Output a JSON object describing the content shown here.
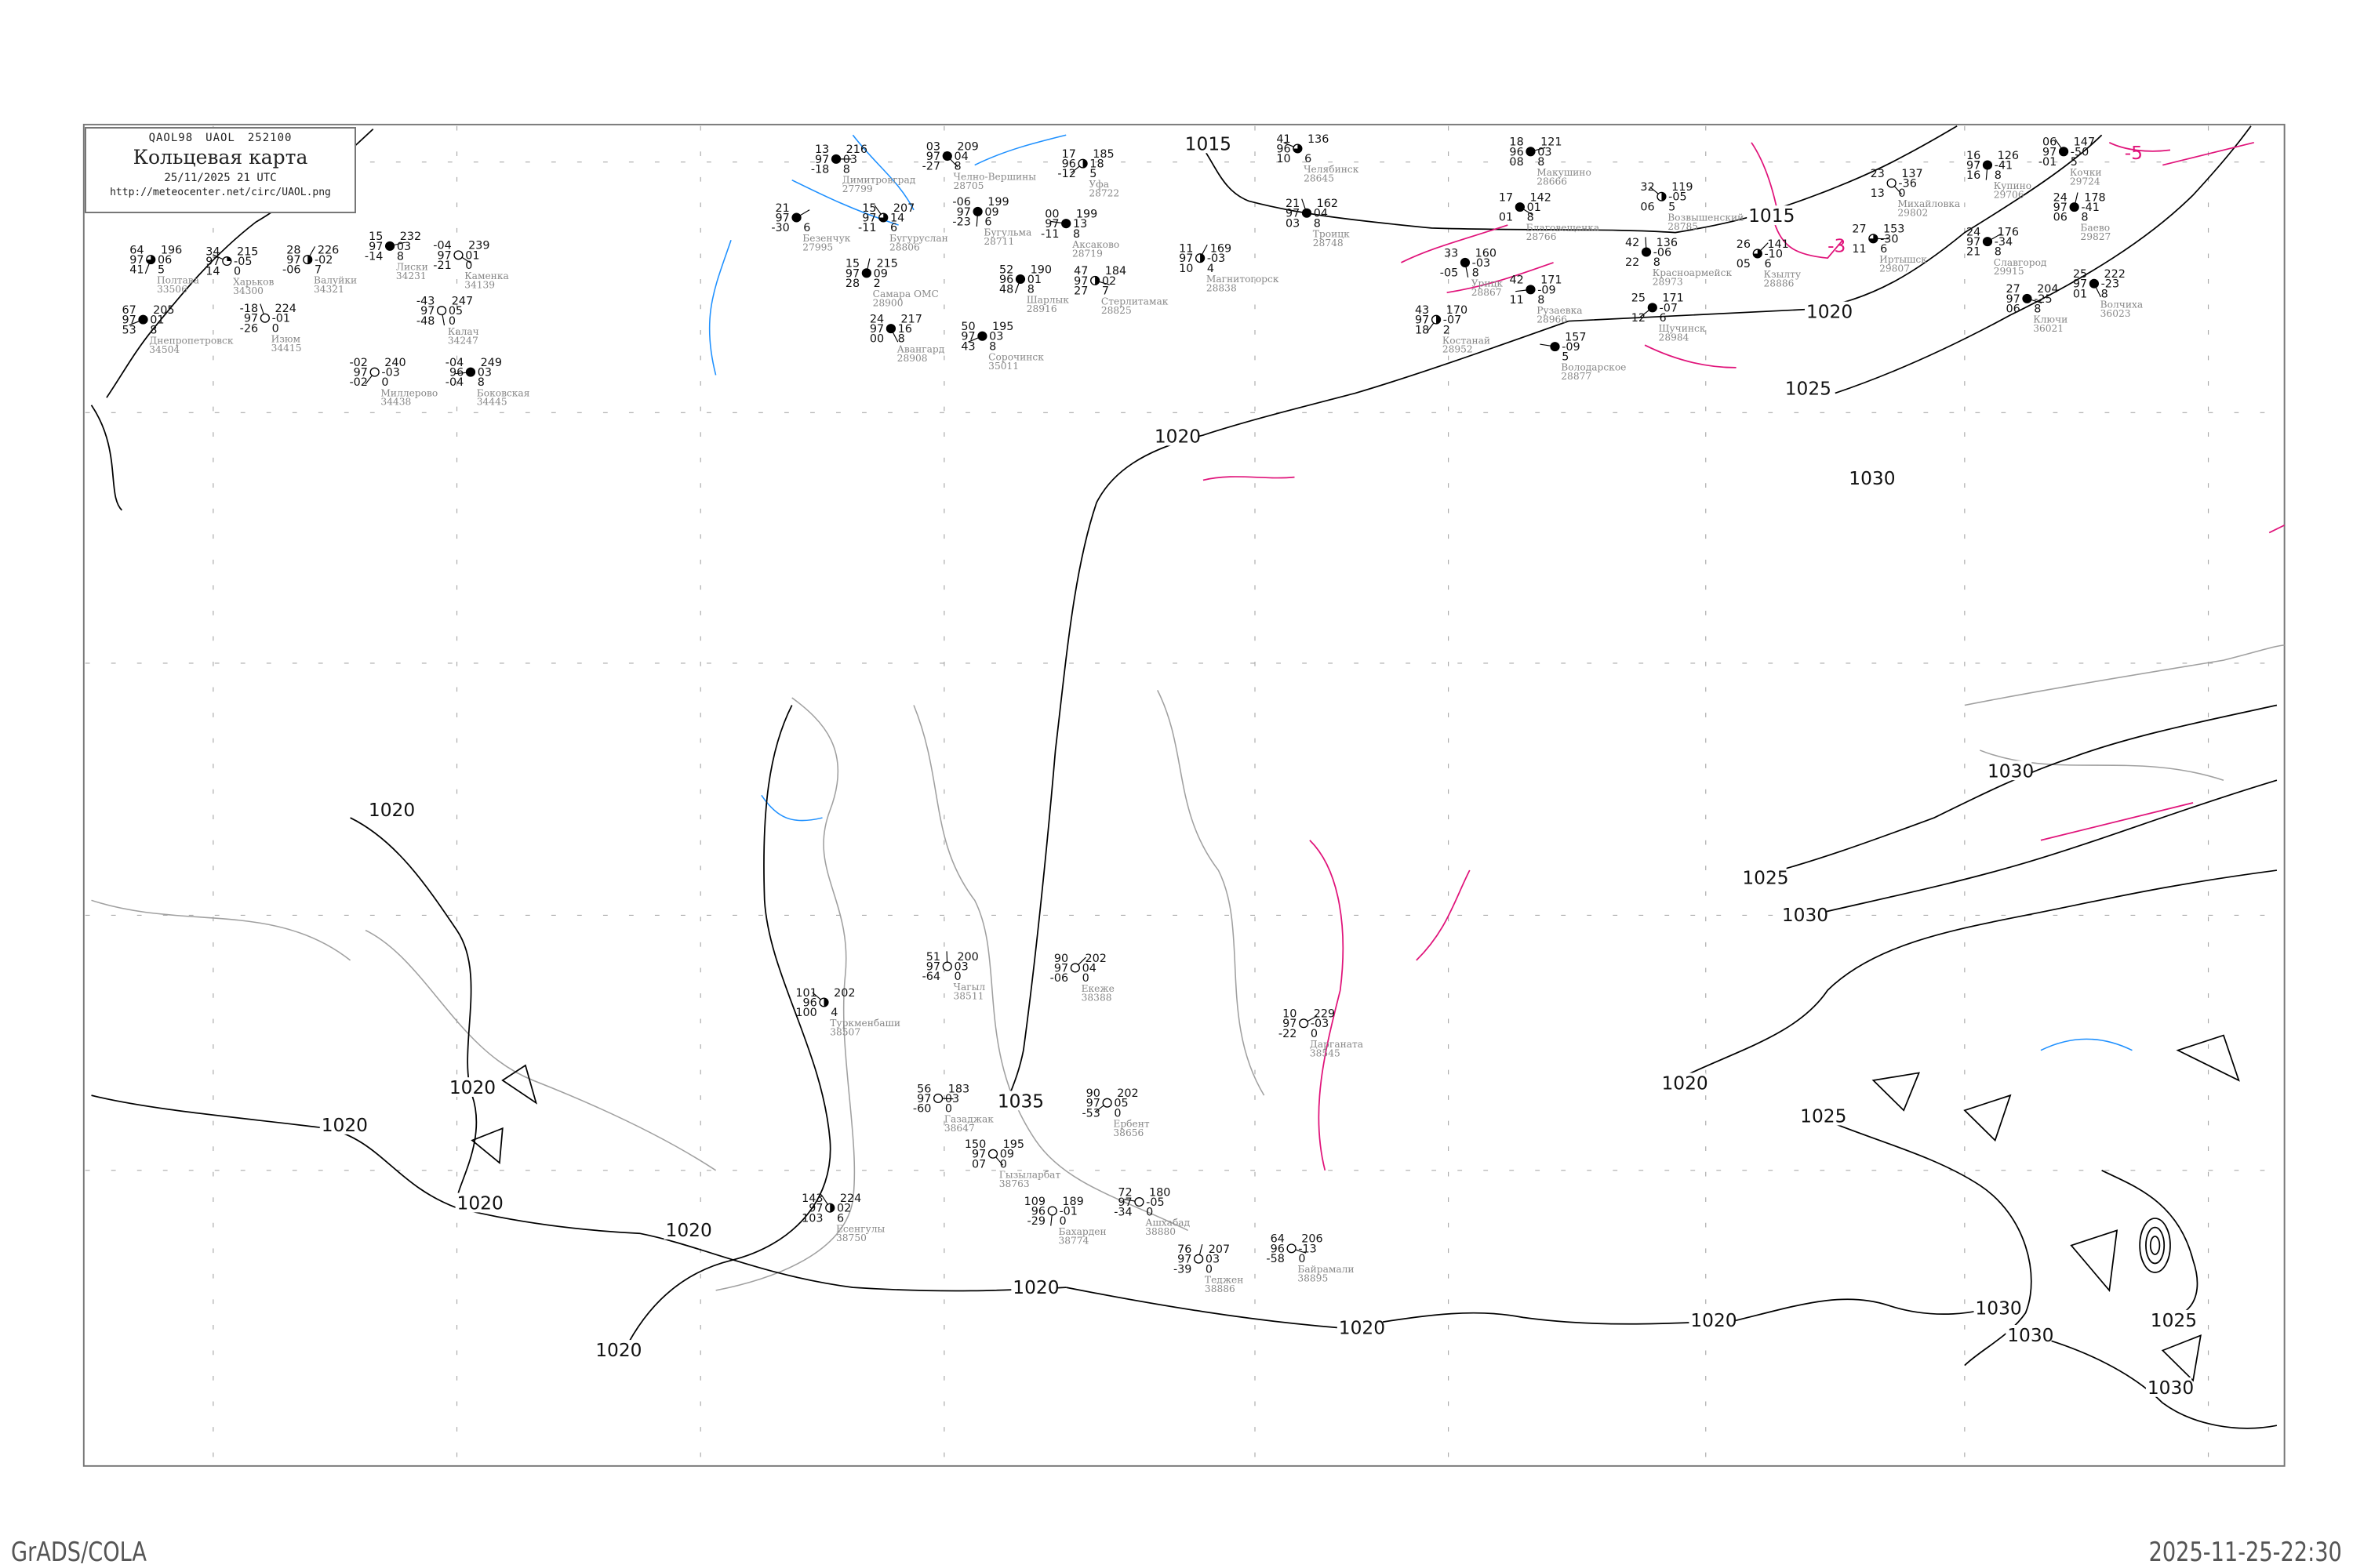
{
  "header": {
    "product_code": [
      "QAOL98",
      "UAOL",
      "252100"
    ],
    "title": "Кольцевая карта",
    "datetime": "25/11/2025 21 UTC",
    "url": "http://meteocenter.net/circ/UAOL.png"
  },
  "footer": {
    "left": "GrADS/COLA",
    "right": "2025-11-25-22:30"
  },
  "colors": {
    "isobar": "#000000",
    "isotherm": "#e0137a",
    "coastline": "#a0a0a0",
    "river": "#1e90ff",
    "station_name": "#888888",
    "frame": "#777777"
  },
  "isobar_labels": [
    "1015",
    "1015",
    "1020",
    "1025",
    "1030",
    "1030",
    "1025",
    "1030",
    "1020",
    "1020",
    "1020",
    "1020",
    "1020",
    "1020",
    "1020",
    "1020",
    "1020",
    "1020",
    "1020",
    "1025",
    "1030",
    "1030",
    "1025",
    "1030",
    "1035"
  ],
  "isotherm_labels": [
    "-3",
    "-5"
  ],
  "stations": [
    {
      "name": "Димитровград",
      "id": "27799",
      "tl": "13",
      "ml": "97",
      "bl": "-18",
      "tr": "216",
      "mr": "03",
      "br": "8",
      "cover": 8
    },
    {
      "name": "Челно-Вершины",
      "id": "28705",
      "tl": "03",
      "ml": "97",
      "bl": "-27",
      "tr": "209",
      "mr": "04",
      "br": "8",
      "cover": 8
    },
    {
      "name": "Бугульма",
      "id": "28711",
      "tl": "-06",
      "ml": "97",
      "bl": "-23",
      "tr": "199",
      "mr": "09",
      "br": "6",
      "cover": 8
    },
    {
      "name": "Уфа",
      "id": "28722",
      "tl": "17",
      "ml": "96",
      "bl": "-12",
      "tr": "185",
      "mr": "18",
      "br": "5",
      "cover": 4
    },
    {
      "name": "Аксаково",
      "id": "28719",
      "tl": "00",
      "ml": "97",
      "bl": "-11",
      "tr": "199",
      "mr": "13",
      "br": "8",
      "cover": 8
    },
    {
      "name": "Бугуруслан",
      "id": "28806",
      "tl": "15",
      "ml": "97",
      "bl": "-11",
      "tr": "207",
      "mr": "14",
      "br": "6",
      "cover": 6
    },
    {
      "name": "Самара ОМС",
      "id": "28900",
      "tl": "15",
      "ml": "97",
      "bl": "28",
      "tr": "215",
      "mr": "09",
      "br": "2",
      "cover": 8
    },
    {
      "name": "Безенчук",
      "id": "27995",
      "tl": "21",
      "ml": "97",
      "bl": "-30",
      "tr": "",
      "mr": "",
      "br": "6",
      "cover": 8
    },
    {
      "name": "Стерлитамак",
      "id": "28825",
      "tl": "47",
      "ml": "97",
      "bl": "27",
      "tr": "184",
      "mr": "02",
      "br": "7",
      "cover": 4
    },
    {
      "name": "Авангард",
      "id": "28908",
      "tl": "24",
      "ml": "97",
      "bl": "00",
      "tr": "217",
      "mr": "16",
      "br": "8",
      "cover": 8
    },
    {
      "name": "Шарлык",
      "id": "28916",
      "tl": "52",
      "ml": "96",
      "bl": "48",
      "tr": "190",
      "mr": "01",
      "br": "8",
      "cover": 8
    },
    {
      "name": "Сорочинск",
      "id": "35011",
      "tl": "50",
      "ml": "97",
      "bl": "43",
      "tr": "195",
      "mr": "03",
      "br": "8",
      "cover": 8
    },
    {
      "name": "Челябинск",
      "id": "28645",
      "tl": "41",
      "ml": "96",
      "bl": "10",
      "tr": "136",
      "mr": "",
      "br": "6",
      "cover": 6
    },
    {
      "name": "Троицк",
      "id": "28748",
      "tl": "21",
      "ml": "97",
      "bl": "03",
      "tr": "162",
      "mr": "04",
      "br": "8",
      "cover": 8
    },
    {
      "name": "Магнитогорск",
      "id": "28838",
      "tl": "11",
      "ml": "97",
      "bl": "10",
      "tr": "169",
      "mr": "-03",
      "br": "4",
      "cover": 4
    },
    {
      "name": "Макушино",
      "id": "28666",
      "tl": "18",
      "ml": "96",
      "bl": "08",
      "tr": "121",
      "mr": "03",
      "br": "8",
      "cover": 8
    },
    {
      "name": "Благовещенка",
      "id": "28766",
      "tl": "17",
      "ml": "",
      "bl": "01",
      "tr": "142",
      "mr": "01",
      "br": "8",
      "cover": 8
    },
    {
      "name": "Урицк",
      "id": "28867",
      "tl": "33",
      "ml": "",
      "bl": "-05",
      "tr": "160",
      "mr": "-03",
      "br": "8",
      "cover": 8
    },
    {
      "name": "Костанай",
      "id": "28952",
      "tl": "43",
      "ml": "97",
      "bl": "18",
      "tr": "170",
      "mr": "-07",
      "br": "2",
      "cover": 4
    },
    {
      "name": "Рузаевка",
      "id": "28966",
      "tl": "42",
      "ml": "",
      "bl": "11",
      "tr": "171",
      "mr": "-09",
      "br": "8",
      "cover": 8
    },
    {
      "name": "Возвышенский",
      "id": "28785",
      "tl": "32",
      "ml": "",
      "bl": "06",
      "tr": "119",
      "mr": "-05",
      "br": "5",
      "cover": 4
    },
    {
      "name": "Красноармейск",
      "id": "28973",
      "tl": "42",
      "ml": "",
      "bl": "22",
      "tr": "136",
      "mr": "-06",
      "br": "8",
      "cover": 8
    },
    {
      "name": "Кзылту",
      "id": "28886",
      "tl": "26",
      "ml": "",
      "bl": "05",
      "tr": "141",
      "mr": "-10",
      "br": "6",
      "cover": 6
    },
    {
      "name": "Иртышск",
      "id": "29807",
      "tl": "27",
      "ml": "",
      "bl": "11",
      "tr": "153",
      "mr": "-30",
      "br": "6",
      "cover": 6
    },
    {
      "name": "Михайловка",
      "id": "29802",
      "tl": "23",
      "ml": "",
      "bl": "13",
      "tr": "137",
      "mr": "-36",
      "br": "0",
      "cover": 0
    },
    {
      "name": "Купино",
      "id": "29706",
      "tl": "16",
      "ml": "97",
      "bl": "16",
      "tr": "126",
      "mr": "-41",
      "br": "8",
      "cover": 8
    },
    {
      "name": "Щучинск",
      "id": "28984",
      "tl": "25",
      "ml": "",
      "bl": "12",
      "tr": "171",
      "mr": "-07",
      "br": "6",
      "cover": 8
    },
    {
      "name": "Володарское",
      "id": "28877",
      "tl": "",
      "ml": "",
      "bl": "",
      "tr": "157",
      "mr": "-09",
      "br": "5",
      "cover": 8
    },
    {
      "name": "Кочки",
      "id": "29724",
      "tl": "06",
      "ml": "97",
      "bl": "-01",
      "tr": "147",
      "mr": "-50",
      "br": "5",
      "cover": 8
    },
    {
      "name": "Баево",
      "id": "29827",
      "tl": "24",
      "ml": "97",
      "bl": "06",
      "tr": "178",
      "mr": "-41",
      "br": "8",
      "cover": 8
    },
    {
      "name": "Славгород",
      "id": "29915",
      "tl": "24",
      "ml": "97",
      "bl": "21",
      "tr": "176",
      "mr": "-34",
      "br": "8",
      "cover": 8
    },
    {
      "name": "Ключи",
      "id": "36021",
      "tl": "27",
      "ml": "97",
      "bl": "06",
      "tr": "204",
      "mr": "-25",
      "br": "8",
      "cover": 8
    },
    {
      "name": "Волчиха",
      "id": "36023",
      "tl": "25",
      "ml": "97",
      "bl": "01",
      "tr": "222",
      "mr": "-23",
      "br": "8",
      "cover": 8
    },
    {
      "name": "Полтава",
      "id": "33506",
      "tl": "64",
      "ml": "97",
      "bl": "41",
      "tr": "196",
      "mr": "06",
      "br": "5",
      "cover": 6
    },
    {
      "name": "Днепропетровск",
      "id": "34504",
      "tl": "67",
      "ml": "97",
      "bl": "53",
      "tr": "205",
      "mr": "01",
      "br": "8",
      "cover": 8
    },
    {
      "name": "Харьков",
      "id": "34300",
      "tl": "34",
      "ml": "97",
      "bl": "14",
      "tr": "215",
      "mr": "-05",
      "br": "0",
      "cover": 2
    },
    {
      "name": "Изюм",
      "id": "34415",
      "tl": "-18",
      "ml": "97",
      "bl": "-26",
      "tr": "224",
      "mr": "-01",
      "br": "0",
      "cover": 0
    },
    {
      "name": "Валуйки",
      "id": "34321",
      "tl": "28",
      "ml": "97",
      "bl": "-06",
      "tr": "226",
      "mr": "-02",
      "br": "7",
      "cover": 4
    },
    {
      "name": "Лиски",
      "id": "34231",
      "tl": "15",
      "ml": "97",
      "bl": "-14",
      "tr": "232",
      "mr": "03",
      "br": "8",
      "cover": 8
    },
    {
      "name": "Каменка",
      "id": "34139",
      "tl": "-04",
      "ml": "97",
      "bl": "-21",
      "tr": "239",
      "mr": "01",
      "br": "0",
      "cover": 0
    },
    {
      "name": "Калач",
      "id": "34247",
      "tl": "-43",
      "ml": "97",
      "bl": "-48",
      "tr": "247",
      "mr": "05",
      "br": "0",
      "cover": 0
    },
    {
      "name": "Миллерово",
      "id": "34438",
      "tl": "-02",
      "ml": "97",
      "bl": "-02",
      "tr": "240",
      "mr": "-03",
      "br": "0",
      "cover": 0
    },
    {
      "name": "Боковская",
      "id": "34445",
      "tl": "-04",
      "ml": "96",
      "bl": "-04",
      "tr": "249",
      "mr": "03",
      "br": "8",
      "cover": 8
    },
    {
      "name": "Туркменбаши",
      "id": "38507",
      "tl": "101",
      "ml": "96",
      "bl": "100",
      "tr": "202",
      "mr": "",
      "br": "4",
      "cover": 4
    },
    {
      "name": "Чагыл",
      "id": "38511",
      "tl": "51",
      "ml": "97",
      "bl": "-64",
      "tr": "200",
      "mr": "03",
      "br": "0",
      "cover": 0
    },
    {
      "name": "Екеже",
      "id": "38388",
      "tl": "90",
      "ml": "97",
      "bl": "-06",
      "tr": "202",
      "mr": "04",
      "br": "0",
      "cover": 0
    },
    {
      "name": "Газаджак",
      "id": "38647",
      "tl": "56",
      "ml": "97",
      "bl": "-60",
      "tr": "183",
      "mr": "03",
      "br": "0",
      "cover": 0
    },
    {
      "name": "Гызыларбат",
      "id": "38763",
      "tl": "150",
      "ml": "97",
      "bl": "07",
      "tr": "195",
      "mr": "09",
      "br": "0",
      "cover": 0
    },
    {
      "name": "Бахарден",
      "id": "38774",
      "tl": "109",
      "ml": "96",
      "bl": "-29",
      "tr": "189",
      "mr": "-01",
      "br": "0",
      "cover": 0
    },
    {
      "name": "Ербент",
      "id": "38656",
      "tl": "90",
      "ml": "97",
      "bl": "-53",
      "tr": "202",
      "mr": "05",
      "br": "0",
      "cover": 0
    },
    {
      "name": "Ашхабад",
      "id": "38880",
      "tl": "72",
      "ml": "97",
      "bl": "-34",
      "tr": "180",
      "mr": "-05",
      "br": "0",
      "cover": 0
    },
    {
      "name": "Есенгулы",
      "id": "38750",
      "tl": "143",
      "ml": "97",
      "bl": "103",
      "tr": "224",
      "mr": "02",
      "br": "6",
      "cover": 4
    },
    {
      "name": "Теджен",
      "id": "38886",
      "tl": "76",
      "ml": "97",
      "bl": "-39",
      "tr": "207",
      "mr": "03",
      "br": "0",
      "cover": 0
    },
    {
      "name": "Дарганата",
      "id": "38545",
      "tl": "10",
      "ml": "97",
      "bl": "-22",
      "tr": "229",
      "mr": "-03",
      "br": "0",
      "cover": 0
    },
    {
      "name": "Байрамали",
      "id": "38895",
      "tl": "64",
      "ml": "96",
      "bl": "-58",
      "tr": "206",
      "mr": "-13",
      "br": "0",
      "cover": 0
    }
  ]
}
